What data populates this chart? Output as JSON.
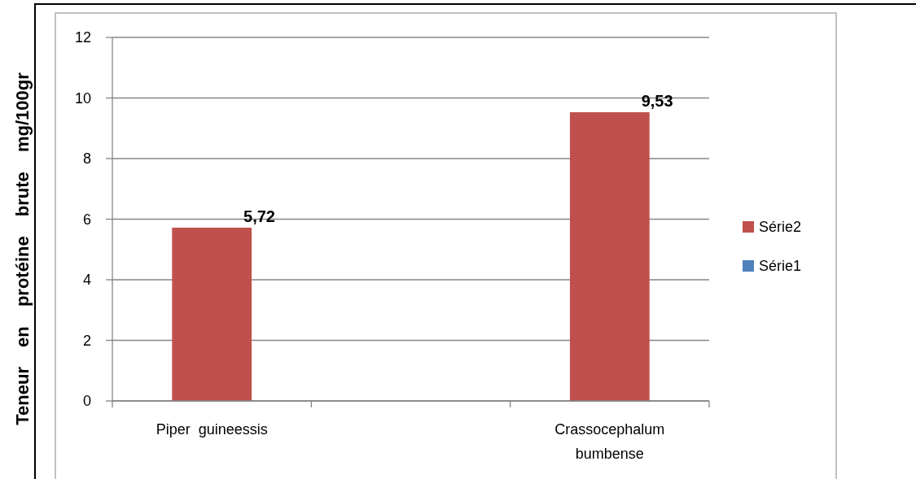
{
  "chart_data": {
    "type": "bar",
    "ylabel": "Teneur en protéine brute mg/100gr",
    "categories": [
      "Piper  guineessis",
      null,
      "Crassocephalum bumbense"
    ],
    "series": [
      {
        "name": "Série2",
        "color": "#c0504d",
        "values": [
          5.72,
          null,
          9.53
        ],
        "value_labels": [
          "5,72",
          null,
          "9,53"
        ]
      },
      {
        "name": "Série1",
        "color": "#4f81bd",
        "values": [
          null,
          null,
          null
        ]
      }
    ],
    "ylim": [
      0,
      12
    ],
    "yticks": [
      0,
      2,
      4,
      6,
      8,
      10,
      12
    ],
    "grid": "y",
    "legend": "right"
  }
}
